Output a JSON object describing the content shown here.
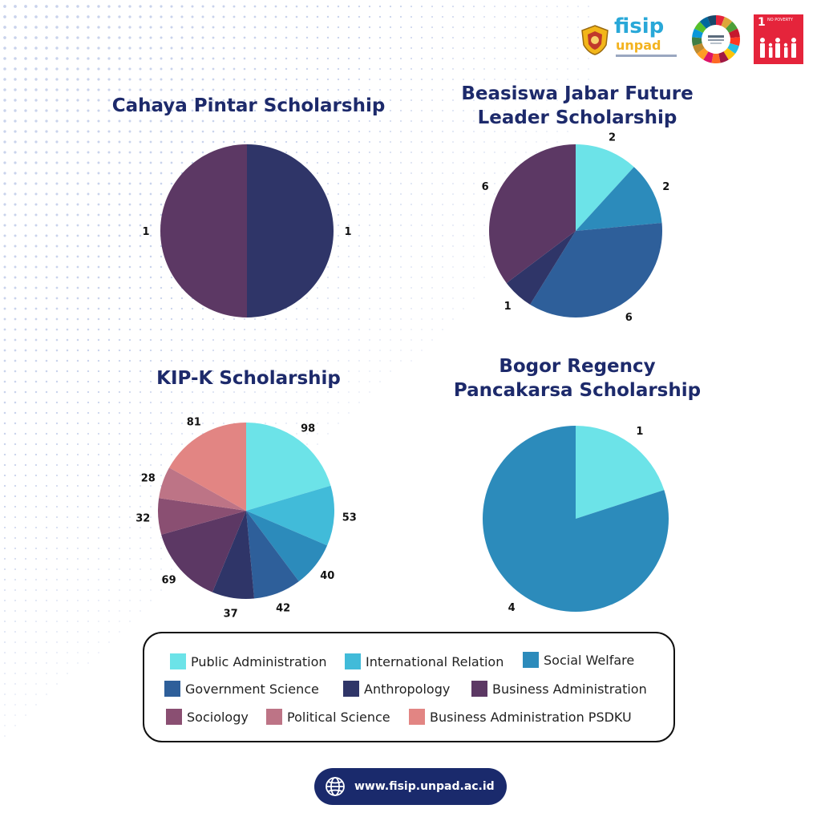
{
  "chart_data": [
    {
      "type": "pie",
      "title": "Cahaya Pintar Scholarship",
      "slices": [
        {
          "category": "Anthropology",
          "value": 1,
          "label": "1"
        },
        {
          "category": "Business Administration",
          "value": 1,
          "label": "1"
        }
      ]
    },
    {
      "type": "pie",
      "title": "Beasiswa Jabar Future\nLeader Scholarship",
      "slices": [
        {
          "category": "Public Administration",
          "value": 2,
          "label": "2"
        },
        {
          "category": "Social Welfare",
          "value": 2,
          "label": "2"
        },
        {
          "category": "Government Science",
          "value": 6,
          "label": "6"
        },
        {
          "category": "Anthropology",
          "value": 1,
          "label": "1"
        },
        {
          "category": "Business Administration",
          "value": 6,
          "label": "6"
        }
      ]
    },
    {
      "type": "pie",
      "title": "KIP-K Scholarship",
      "slices": [
        {
          "category": "Public Administration",
          "value": 98,
          "label": "98"
        },
        {
          "category": "International Relation",
          "value": 53,
          "label": "53"
        },
        {
          "category": "Social Welfare",
          "value": 40,
          "label": "40"
        },
        {
          "category": "Government Science",
          "value": 42,
          "label": "42"
        },
        {
          "category": "Anthropology",
          "value": 37,
          "label": "37"
        },
        {
          "category": "Business Administration",
          "value": 69,
          "label": "69"
        },
        {
          "category": "Sociology",
          "value": 32,
          "label": "32"
        },
        {
          "category": "Political Science",
          "value": 28,
          "label": "28"
        },
        {
          "category": "Business Administration PSDKU",
          "value": 81,
          "label": "81"
        }
      ]
    },
    {
      "type": "pie",
      "title": "Bogor Regency\nPancakarsa Scholarship",
      "slices": [
        {
          "category": "Public Administration",
          "value": 1,
          "label": "1"
        },
        {
          "category": "Social Welfare",
          "value": 4,
          "label": "4"
        }
      ]
    }
  ],
  "legend": {
    "placement": "bottom",
    "items": [
      {
        "label": "Public Administration",
        "color": "#6ce3e8"
      },
      {
        "label": "International Relation",
        "color": "#41bbd9"
      },
      {
        "label": "Social Welfare",
        "color": "#2c8bbb"
      },
      {
        "label": "Government Science",
        "color": "#2e5f9a"
      },
      {
        "label": "Anthropology",
        "color": "#2f3568"
      },
      {
        "label": "Business Administration",
        "color": "#5c3864"
      },
      {
        "label": "Sociology",
        "color": "#8a4f72"
      },
      {
        "label": "Political Science",
        "color": "#bd7486"
      },
      {
        "label": "Business Administration PSDKU",
        "color": "#e28583"
      }
    ]
  },
  "header": {
    "fisip_word": "fisip",
    "unpad_word": "unpad",
    "sdg1_number": "1",
    "sdg1_text": "NO POVERTY",
    "sdg_wheel_icon": "sdg-wheel-icon",
    "seal_icon": "unpad-seal-icon"
  },
  "footer": {
    "website": "www.fisip.unpad.ac.id",
    "icon": "globe-icon"
  },
  "colors": {
    "title": "#1d2a6b",
    "footer_pill": "#1a2a6c",
    "sdg1": "#e5243b",
    "dots": "#c9d3ec"
  }
}
